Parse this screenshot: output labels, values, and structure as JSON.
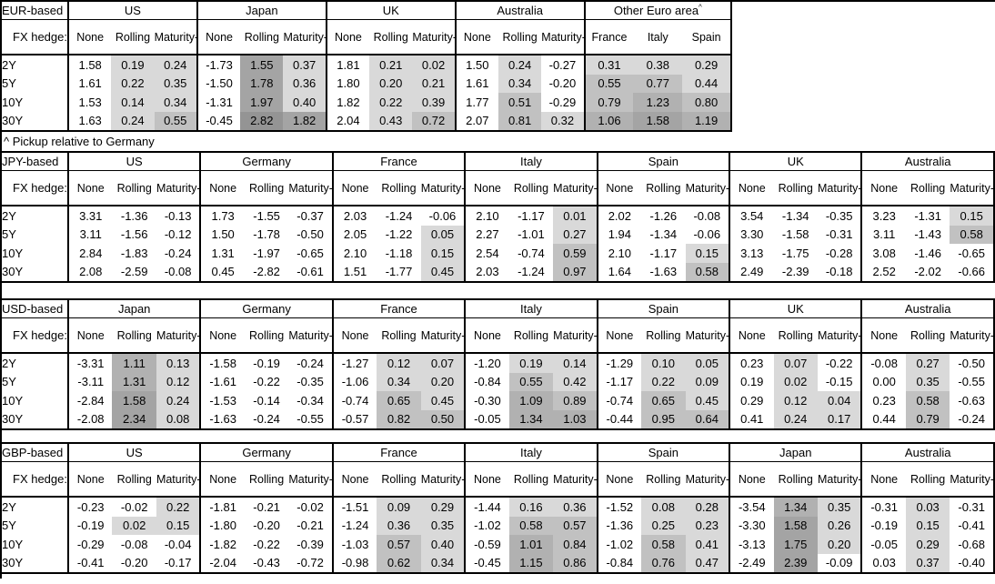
{
  "note": "^ Pickup relative to Germany",
  "fx_hedge_label": "FX hedge:",
  "tenors": [
    "2Y",
    "5Y",
    "10Y",
    "30Y"
  ],
  "heatmap": {
    "description": "Conditional shading applied to Rolling, Maturity-matched and pickup columns; negative values white, larger positive values darker gray",
    "scale": [
      {
        "lt": 0,
        "color": "#ffffff"
      },
      {
        "lt": 0.5,
        "color": "#d9d9d9"
      },
      {
        "lt": 1.0,
        "color": "#c1c1c1"
      },
      {
        "lt": 1.5,
        "color": "#b1b1b1"
      },
      {
        "lt": 2.5,
        "color": "#a4a4a4"
      },
      {
        "lt": 99,
        "color": "#949494"
      }
    ]
  },
  "chart_data": [
    {
      "type": "table",
      "base": "EUR-based",
      "groups": [
        {
          "name": "US",
          "columns": [
            "None",
            "Rolling",
            "Maturity-matched"
          ],
          "shaded": [
            false,
            true,
            true
          ],
          "values": [
            [
              "1.58",
              "0.19",
              "0.24"
            ],
            [
              "1.61",
              "0.22",
              "0.35"
            ],
            [
              "1.53",
              "0.14",
              "0.34"
            ],
            [
              "1.63",
              "0.24",
              "0.55"
            ]
          ]
        },
        {
          "name": "Japan",
          "columns": [
            "None",
            "Rolling",
            "Maturity-matched"
          ],
          "shaded": [
            false,
            true,
            true
          ],
          "values": [
            [
              "-1.73",
              "1.55",
              "0.37"
            ],
            [
              "-1.50",
              "1.78",
              "0.36"
            ],
            [
              "-1.31",
              "1.97",
              "0.40"
            ],
            [
              "-0.45",
              "2.82",
              "1.82"
            ]
          ]
        },
        {
          "name": "UK",
          "columns": [
            "None",
            "Rolling",
            "Maturity-matched"
          ],
          "shaded": [
            false,
            true,
            true
          ],
          "values": [
            [
              "1.81",
              "0.21",
              "0.02"
            ],
            [
              "1.80",
              "0.20",
              "0.21"
            ],
            [
              "1.82",
              "0.22",
              "0.39"
            ],
            [
              "2.04",
              "0.43",
              "0.72"
            ]
          ]
        },
        {
          "name": "Australia",
          "columns": [
            "None",
            "Rolling",
            "Maturity-matched"
          ],
          "shaded": [
            false,
            true,
            true
          ],
          "values": [
            [
              "1.50",
              "0.24",
              "-0.27"
            ],
            [
              "1.61",
              "0.34",
              "-0.20"
            ],
            [
              "1.77",
              "0.51",
              "-0.29"
            ],
            [
              "2.07",
              "0.81",
              "0.32"
            ]
          ]
        },
        {
          "name": "Other Euro area",
          "sup": "^",
          "columns": [
            "France",
            "Italy",
            "Spain"
          ],
          "shaded": [
            true,
            true,
            true
          ],
          "values": [
            [
              "0.31",
              "0.38",
              "0.29"
            ],
            [
              "0.55",
              "0.77",
              "0.44"
            ],
            [
              "0.79",
              "1.23",
              "0.80"
            ],
            [
              "1.06",
              "1.58",
              "1.19"
            ]
          ]
        }
      ]
    },
    {
      "type": "table",
      "base": "JPY-based",
      "groups": [
        {
          "name": "US",
          "columns": [
            "None",
            "Rolling",
            "Maturity-matched"
          ],
          "shaded": [
            false,
            true,
            true
          ],
          "values": [
            [
              "3.31",
              "-1.36",
              "-0.13"
            ],
            [
              "3.11",
              "-1.56",
              "-0.12"
            ],
            [
              "2.84",
              "-1.83",
              "-0.24"
            ],
            [
              "2.08",
              "-2.59",
              "-0.08"
            ]
          ]
        },
        {
          "name": "Germany",
          "columns": [
            "None",
            "Rolling",
            "Maturity-matched"
          ],
          "shaded": [
            false,
            true,
            true
          ],
          "values": [
            [
              "1.73",
              "-1.55",
              "-0.37"
            ],
            [
              "1.50",
              "-1.78",
              "-0.50"
            ],
            [
              "1.31",
              "-1.97",
              "-0.65"
            ],
            [
              "0.45",
              "-2.82",
              "-0.61"
            ]
          ]
        },
        {
          "name": "France",
          "columns": [
            "None",
            "Rolling",
            "Maturity-matched"
          ],
          "shaded": [
            false,
            true,
            true
          ],
          "values": [
            [
              "2.03",
              "-1.24",
              "-0.06"
            ],
            [
              "2.05",
              "-1.22",
              "0.05"
            ],
            [
              "2.10",
              "-1.18",
              "0.15"
            ],
            [
              "1.51",
              "-1.77",
              "0.45"
            ]
          ]
        },
        {
          "name": "Italy",
          "columns": [
            "None",
            "Rolling",
            "Maturity-matched"
          ],
          "shaded": [
            false,
            true,
            true
          ],
          "values": [
            [
              "2.10",
              "-1.17",
              "0.01"
            ],
            [
              "2.27",
              "-1.01",
              "0.27"
            ],
            [
              "2.54",
              "-0.74",
              "0.59"
            ],
            [
              "2.03",
              "-1.24",
              "0.97"
            ]
          ]
        },
        {
          "name": "Spain",
          "columns": [
            "None",
            "Rolling",
            "Maturity-matched"
          ],
          "shaded": [
            false,
            true,
            true
          ],
          "values": [
            [
              "2.02",
              "-1.26",
              "-0.08"
            ],
            [
              "1.94",
              "-1.34",
              "-0.06"
            ],
            [
              "2.10",
              "-1.17",
              "0.15"
            ],
            [
              "1.64",
              "-1.63",
              "0.58"
            ]
          ]
        },
        {
          "name": "UK",
          "columns": [
            "None",
            "Rolling",
            "Maturity-matched"
          ],
          "shaded": [
            false,
            true,
            true
          ],
          "values": [
            [
              "3.54",
              "-1.34",
              "-0.35"
            ],
            [
              "3.30",
              "-1.58",
              "-0.31"
            ],
            [
              "3.13",
              "-1.75",
              "-0.28"
            ],
            [
              "2.49",
              "-2.39",
              "-0.18"
            ]
          ]
        },
        {
          "name": "Australia",
          "columns": [
            "None",
            "Rolling",
            "Maturity-matched"
          ],
          "shaded": [
            false,
            true,
            true
          ],
          "values": [
            [
              "3.23",
              "-1.31",
              "0.15"
            ],
            [
              "3.11",
              "-1.43",
              "0.58"
            ],
            [
              "3.08",
              "-1.46",
              "-0.65"
            ],
            [
              "2.52",
              "-2.02",
              "-0.66"
            ]
          ]
        }
      ]
    },
    {
      "type": "table",
      "base": "USD-based",
      "groups": [
        {
          "name": "Japan",
          "columns": [
            "None",
            "Rolling",
            "Maturity-matched"
          ],
          "shaded": [
            false,
            true,
            true
          ],
          "values": [
            [
              "-3.31",
              "1.11",
              "0.13"
            ],
            [
              "-3.11",
              "1.31",
              "0.12"
            ],
            [
              "-2.84",
              "1.58",
              "0.24"
            ],
            [
              "-2.08",
              "2.34",
              "0.08"
            ]
          ]
        },
        {
          "name": "Germany",
          "columns": [
            "None",
            "Rolling",
            "Maturity-matched"
          ],
          "shaded": [
            false,
            true,
            true
          ],
          "values": [
            [
              "-1.58",
              "-0.19",
              "-0.24"
            ],
            [
              "-1.61",
              "-0.22",
              "-0.35"
            ],
            [
              "-1.53",
              "-0.14",
              "-0.34"
            ],
            [
              "-1.63",
              "-0.24",
              "-0.55"
            ]
          ]
        },
        {
          "name": "France",
          "columns": [
            "None",
            "Rolling",
            "Maturity-matched"
          ],
          "shaded": [
            false,
            true,
            true
          ],
          "values": [
            [
              "-1.27",
              "0.12",
              "0.07"
            ],
            [
              "-1.06",
              "0.34",
              "0.20"
            ],
            [
              "-0.74",
              "0.65",
              "0.45"
            ],
            [
              "-0.57",
              "0.82",
              "0.50"
            ]
          ]
        },
        {
          "name": "Italy",
          "columns": [
            "None",
            "Rolling",
            "Maturity-matched"
          ],
          "shaded": [
            false,
            true,
            true
          ],
          "values": [
            [
              "-1.20",
              "0.19",
              "0.14"
            ],
            [
              "-0.84",
              "0.55",
              "0.42"
            ],
            [
              "-0.30",
              "1.09",
              "0.89"
            ],
            [
              "-0.05",
              "1.34",
              "1.03"
            ]
          ]
        },
        {
          "name": "Spain",
          "columns": [
            "None",
            "Rolling",
            "Maturity-matched"
          ],
          "shaded": [
            false,
            true,
            true
          ],
          "values": [
            [
              "-1.29",
              "0.10",
              "0.05"
            ],
            [
              "-1.17",
              "0.22",
              "0.09"
            ],
            [
              "-0.74",
              "0.65",
              "0.45"
            ],
            [
              "-0.44",
              "0.95",
              "0.64"
            ]
          ]
        },
        {
          "name": "UK",
          "columns": [
            "None",
            "Rolling",
            "Maturity-matched"
          ],
          "shaded": [
            false,
            true,
            true
          ],
          "values": [
            [
              "0.23",
              "0.07",
              "-0.22"
            ],
            [
              "0.19",
              "0.02",
              "-0.15"
            ],
            [
              "0.29",
              "0.12",
              "0.04"
            ],
            [
              "0.41",
              "0.24",
              "0.17"
            ]
          ]
        },
        {
          "name": "Australia",
          "columns": [
            "None",
            "Rolling",
            "Maturity-matched"
          ],
          "shaded": [
            false,
            true,
            true
          ],
          "values": [
            [
              "-0.08",
              "0.27",
              "-0.50"
            ],
            [
              "0.00",
              "0.35",
              "-0.55"
            ],
            [
              "0.23",
              "0.58",
              "-0.63"
            ],
            [
              "0.44",
              "0.79",
              "-0.24"
            ]
          ]
        }
      ]
    },
    {
      "type": "table",
      "base": "GBP-based",
      "groups": [
        {
          "name": "US",
          "columns": [
            "None",
            "Rolling",
            "Maturity-matched"
          ],
          "shaded": [
            false,
            true,
            true
          ],
          "values": [
            [
              "-0.23",
              "-0.02",
              "0.22"
            ],
            [
              "-0.19",
              "0.02",
              "0.15"
            ],
            [
              "-0.29",
              "-0.08",
              "-0.04"
            ],
            [
              "-0.41",
              "-0.20",
              "-0.17"
            ]
          ]
        },
        {
          "name": "Germany",
          "columns": [
            "None",
            "Rolling",
            "Maturity-matched"
          ],
          "shaded": [
            false,
            true,
            true
          ],
          "values": [
            [
              "-1.81",
              "-0.21",
              "-0.02"
            ],
            [
              "-1.80",
              "-0.20",
              "-0.21"
            ],
            [
              "-1.82",
              "-0.22",
              "-0.39"
            ],
            [
              "-2.04",
              "-0.43",
              "-0.72"
            ]
          ]
        },
        {
          "name": "France",
          "columns": [
            "None",
            "Rolling",
            "Maturity-matched"
          ],
          "shaded": [
            false,
            true,
            true
          ],
          "values": [
            [
              "-1.51",
              "0.09",
              "0.29"
            ],
            [
              "-1.24",
              "0.36",
              "0.35"
            ],
            [
              "-1.03",
              "0.57",
              "0.40"
            ],
            [
              "-0.98",
              "0.62",
              "0.34"
            ]
          ]
        },
        {
          "name": "Italy",
          "columns": [
            "None",
            "Rolling",
            "Maturity-matched"
          ],
          "shaded": [
            false,
            true,
            true
          ],
          "values": [
            [
              "-1.44",
              "0.16",
              "0.36"
            ],
            [
              "-1.02",
              "0.58",
              "0.57"
            ],
            [
              "-0.59",
              "1.01",
              "0.84"
            ],
            [
              "-0.45",
              "1.15",
              "0.86"
            ]
          ]
        },
        {
          "name": "Spain",
          "columns": [
            "None",
            "Rolling",
            "Maturity-matched"
          ],
          "shaded": [
            false,
            true,
            true
          ],
          "values": [
            [
              "-1.52",
              "0.08",
              "0.28"
            ],
            [
              "-1.36",
              "0.25",
              "0.23"
            ],
            [
              "-1.02",
              "0.58",
              "0.41"
            ],
            [
              "-0.84",
              "0.76",
              "0.47"
            ]
          ]
        },
        {
          "name": "Japan",
          "columns": [
            "None",
            "Rolling",
            "Maturity-matched"
          ],
          "shaded": [
            false,
            true,
            true
          ],
          "values": [
            [
              "-3.54",
              "1.34",
              "0.35"
            ],
            [
              "-3.30",
              "1.58",
              "0.26"
            ],
            [
              "-3.13",
              "1.75",
              "0.20"
            ],
            [
              "-2.49",
              "2.39",
              "-0.09"
            ]
          ]
        },
        {
          "name": "Australia",
          "columns": [
            "None",
            "Rolling",
            "Maturity-matched"
          ],
          "shaded": [
            false,
            true,
            true
          ],
          "values": [
            [
              "-0.31",
              "0.03",
              "-0.31"
            ],
            [
              "-0.19",
              "0.15",
              "-0.41"
            ],
            [
              "-0.05",
              "0.29",
              "-0.68"
            ],
            [
              "0.03",
              "0.37",
              "-0.40"
            ]
          ]
        }
      ]
    }
  ]
}
